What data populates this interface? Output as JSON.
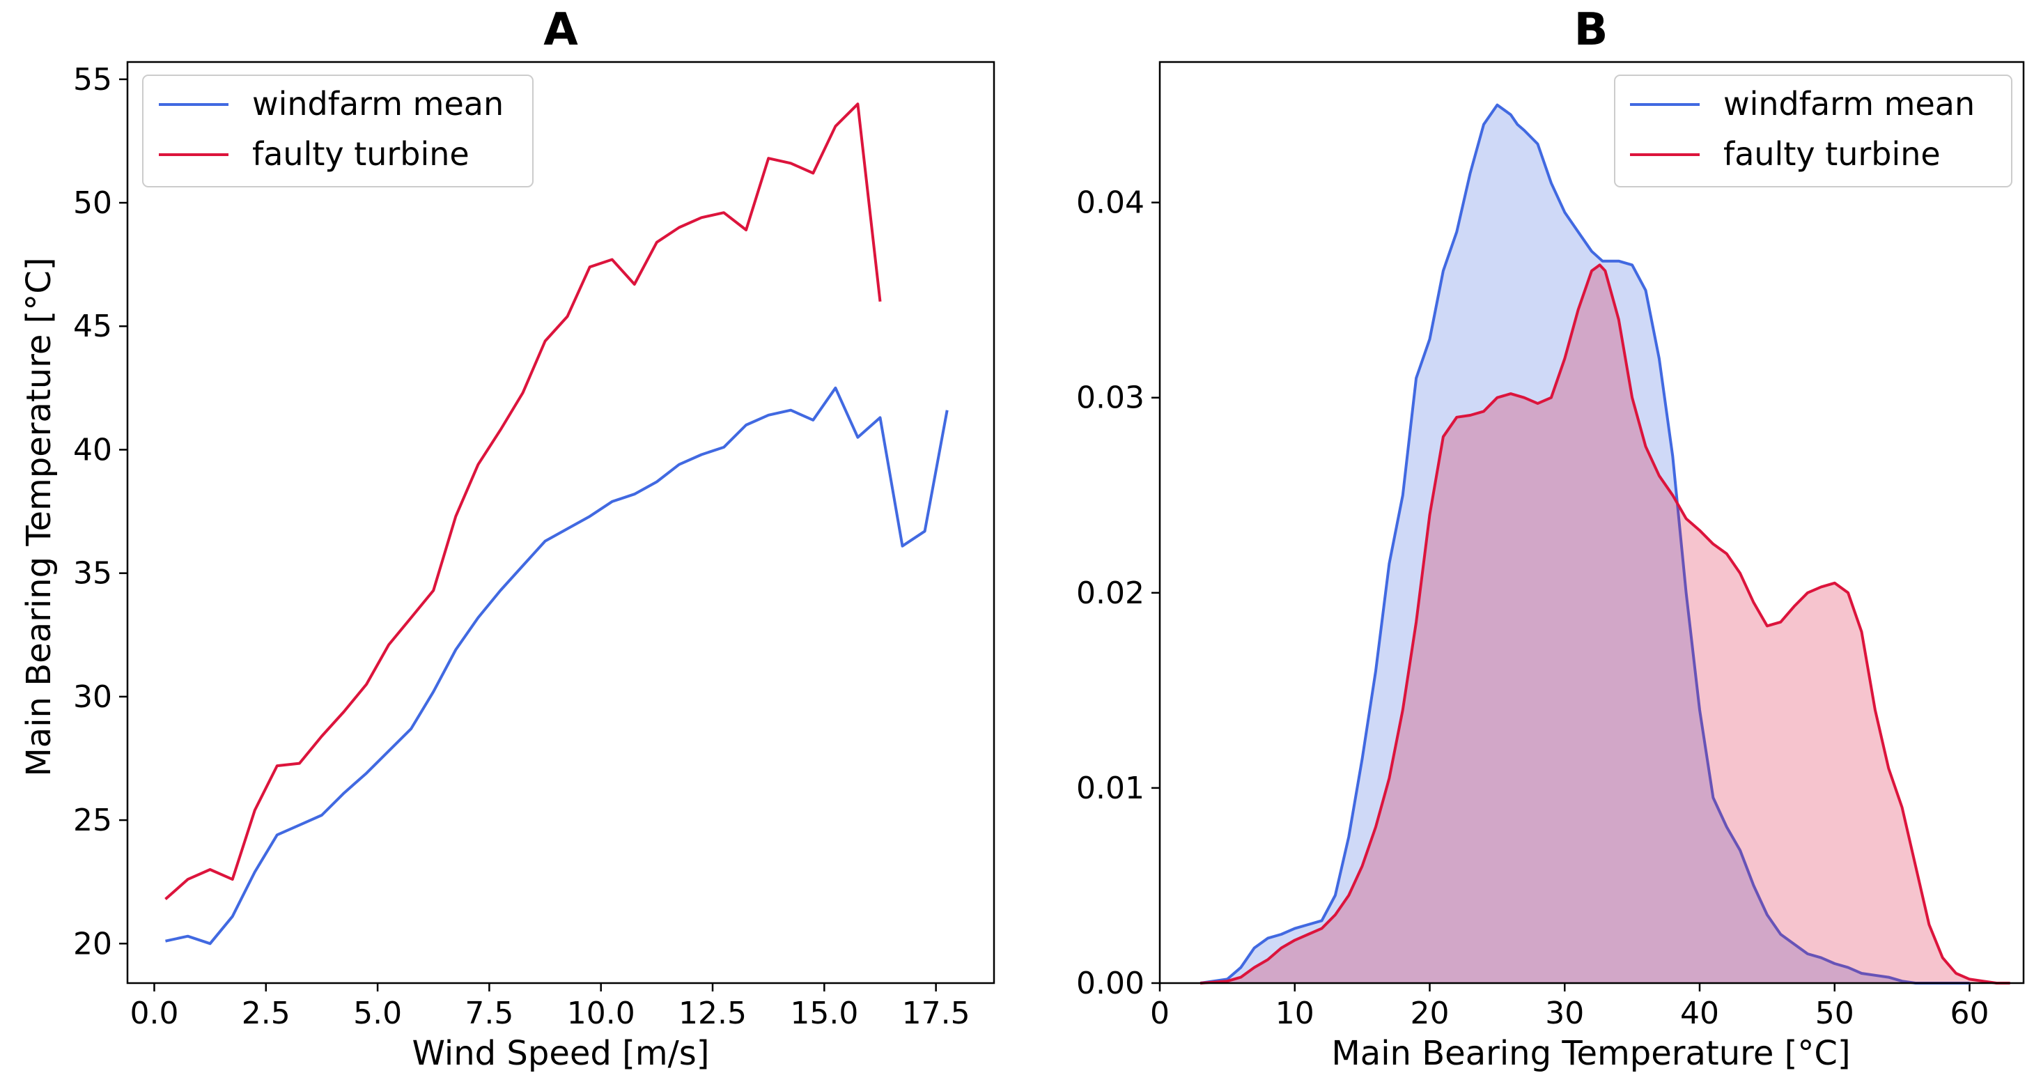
{
  "chart_data": [
    {
      "type": "line",
      "title": "A",
      "xlabel": "Wind Speed [m/s]",
      "ylabel": "Main Bearing Temperature [°C]",
      "xlim": [
        -0.6,
        18.8
      ],
      "ylim": [
        18.4,
        55.7
      ],
      "xticks": [
        0,
        2.5,
        5,
        7.5,
        10,
        12.5,
        15,
        17.5
      ],
      "xtick_labels": [
        "0.0",
        "2.5",
        "5.0",
        "7.5",
        "10.0",
        "12.5",
        "15.0",
        "17.5"
      ],
      "yticks": [
        20,
        25,
        30,
        35,
        40,
        45,
        50,
        55
      ],
      "ytick_labels": [
        "20",
        "25",
        "30",
        "35",
        "40",
        "45",
        "50",
        "55"
      ],
      "legend_position": "top-left",
      "series": [
        {
          "name": "windfarm mean",
          "color": "#4169e1",
          "x": [
            0.25,
            0.75,
            1.25,
            1.75,
            2.25,
            2.75,
            3.25,
            3.75,
            4.25,
            4.75,
            5.25,
            5.75,
            6.25,
            6.75,
            7.25,
            7.75,
            8.25,
            8.75,
            9.25,
            9.75,
            10.25,
            10.75,
            11.25,
            11.75,
            12.25,
            12.75,
            13.25,
            13.75,
            14.25,
            14.75,
            15.25,
            15.75,
            16.25,
            16.75,
            17.25,
            17.75
          ],
          "y": [
            20.1,
            20.3,
            20.0,
            21.1,
            22.9,
            24.4,
            24.8,
            25.2,
            26.1,
            26.9,
            27.8,
            28.7,
            30.2,
            31.9,
            33.2,
            34.3,
            35.3,
            36.3,
            36.8,
            37.3,
            37.9,
            38.2,
            38.7,
            39.4,
            39.8,
            40.1,
            41.0,
            41.4,
            41.6,
            41.2,
            42.5,
            40.5,
            41.3,
            36.1,
            36.7,
            41.6
          ]
        },
        {
          "name": "faulty turbine",
          "color": "#dc143c",
          "x": [
            0.25,
            0.75,
            1.25,
            1.75,
            2.25,
            2.75,
            3.25,
            3.75,
            4.25,
            4.75,
            5.25,
            5.75,
            6.25,
            6.75,
            7.25,
            7.75,
            8.25,
            8.75,
            9.25,
            9.75,
            10.25,
            10.75,
            11.25,
            11.75,
            12.25,
            12.75,
            13.25,
            13.75,
            14.25,
            14.75,
            15.25,
            15.75,
            16.25
          ],
          "y": [
            21.8,
            22.6,
            23.0,
            22.6,
            25.4,
            27.2,
            27.3,
            28.4,
            29.4,
            30.5,
            32.1,
            33.2,
            34.3,
            37.3,
            39.4,
            40.8,
            42.3,
            44.4,
            45.4,
            47.4,
            47.7,
            46.7,
            48.4,
            49.0,
            49.4,
            49.6,
            48.9,
            51.8,
            51.6,
            51.2,
            53.1,
            54.0,
            46.0
          ]
        }
      ]
    },
    {
      "type": "area",
      "title": "B",
      "xlabel": "Main Bearing Temperature [°C]",
      "ylabel": "",
      "xlim": [
        0,
        64
      ],
      "ylim": [
        0,
        0.0472
      ],
      "xticks": [
        0,
        10,
        20,
        30,
        40,
        50,
        60
      ],
      "xtick_labels": [
        "0",
        "10",
        "20",
        "30",
        "40",
        "50",
        "60"
      ],
      "yticks": [
        0,
        0.01,
        0.02,
        0.03,
        0.04
      ],
      "ytick_labels": [
        "0.00",
        "0.01",
        "0.02",
        "0.03",
        "0.04"
      ],
      "legend_position": "top-right",
      "series": [
        {
          "name": "windfarm mean",
          "color": "#4169e1",
          "fill_opacity": 0.25,
          "x": [
            3,
            5,
            6,
            7,
            8,
            9,
            10,
            11,
            12,
            13,
            14,
            15,
            16,
            17,
            18,
            19,
            20,
            21,
            22,
            23,
            24,
            25,
            26,
            26.5,
            27,
            28,
            29,
            30,
            31,
            32,
            32.8,
            34,
            35,
            36,
            37,
            38,
            39,
            40,
            41,
            42,
            43,
            44,
            45,
            46,
            47,
            48,
            49,
            50,
            51,
            52,
            53,
            54,
            55,
            56,
            57,
            58,
            59,
            60
          ],
          "y": [
            0,
            0.0002,
            0.0008,
            0.0018,
            0.0023,
            0.0025,
            0.0028,
            0.003,
            0.0032,
            0.0045,
            0.0075,
            0.0115,
            0.016,
            0.0215,
            0.025,
            0.031,
            0.033,
            0.0365,
            0.0385,
            0.0415,
            0.044,
            0.045,
            0.0445,
            0.044,
            0.0437,
            0.043,
            0.041,
            0.0395,
            0.0385,
            0.0375,
            0.037,
            0.037,
            0.0368,
            0.0355,
            0.032,
            0.027,
            0.02,
            0.014,
            0.0095,
            0.008,
            0.0068,
            0.005,
            0.0035,
            0.0025,
            0.002,
            0.0015,
            0.0013,
            0.001,
            0.0008,
            0.0005,
            0.0004,
            0.0003,
            0.0001,
            0,
            0,
            0,
            0,
            0
          ]
        },
        {
          "name": "faulty turbine",
          "color": "#dc143c",
          "fill_opacity": 0.25,
          "x": [
            3,
            5,
            6,
            7,
            8,
            9,
            10,
            11,
            12,
            13,
            14,
            15,
            16,
            17,
            18,
            19,
            20,
            21,
            22,
            23,
            24,
            25,
            26,
            27,
            28,
            29,
            30,
            31,
            32,
            32.6,
            33,
            34,
            35,
            36,
            37,
            38,
            39,
            40,
            41,
            42,
            43,
            44,
            45,
            46,
            47,
            48,
            49,
            50,
            51,
            52,
            53,
            54,
            55,
            56,
            57,
            58,
            59,
            60,
            61,
            62,
            63
          ],
          "y": [
            0,
            0.0001,
            0.0003,
            0.0008,
            0.0012,
            0.0018,
            0.0022,
            0.0025,
            0.0028,
            0.0035,
            0.0045,
            0.006,
            0.008,
            0.0105,
            0.014,
            0.0185,
            0.024,
            0.028,
            0.029,
            0.0291,
            0.0293,
            0.03,
            0.0302,
            0.03,
            0.0297,
            0.03,
            0.032,
            0.0345,
            0.0365,
            0.0368,
            0.0365,
            0.034,
            0.03,
            0.0275,
            0.026,
            0.025,
            0.0238,
            0.0232,
            0.0225,
            0.022,
            0.021,
            0.0195,
            0.0183,
            0.0185,
            0.0193,
            0.02,
            0.0203,
            0.0205,
            0.02,
            0.018,
            0.014,
            0.011,
            0.009,
            0.006,
            0.003,
            0.0013,
            0.0005,
            0.0002,
            0.0001,
            0,
            0
          ]
        }
      ]
    }
  ]
}
